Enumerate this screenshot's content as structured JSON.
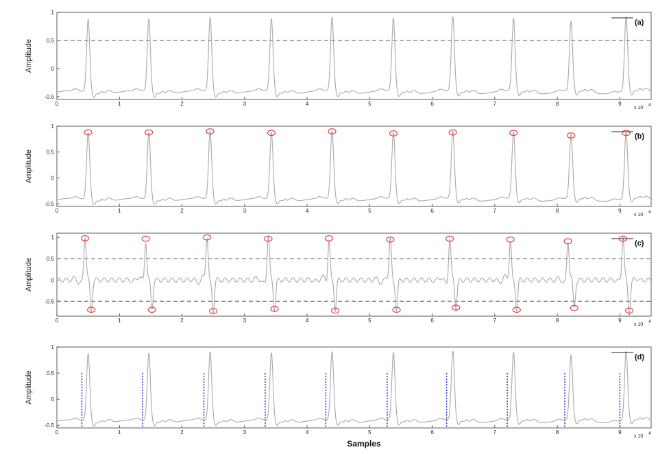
{
  "figure": {
    "xlabel": "Samples",
    "x_scale_note": "x 10",
    "x_scale_exp": "4"
  },
  "chart_data": [
    {
      "type": "line",
      "panel": "(a)",
      "ylabel": "Amplitude",
      "xlim": [
        0,
        9.5
      ],
      "ylim": [
        -0.55,
        1.0
      ],
      "x_ticks": [
        "0",
        "1",
        "2",
        "3",
        "4",
        "5",
        "6",
        "7",
        "8",
        "9"
      ],
      "y_ticks": [
        "-0.5",
        "0",
        "0.5",
        "1"
      ],
      "threshold_lines": [
        0.5
      ],
      "r_peaks_x": [
        0.5,
        1.47,
        2.45,
        3.43,
        4.4,
        5.38,
        6.33,
        7.3,
        8.22,
        9.1
      ],
      "r_peaks_y": [
        0.88,
        0.88,
        0.9,
        0.88,
        0.9,
        0.88,
        0.9,
        0.87,
        0.82,
        0.9
      ],
      "marked_peaks": false
    },
    {
      "type": "line",
      "panel": "(b)",
      "ylabel": "Amplitude",
      "xlim": [
        0,
        9.5
      ],
      "ylim": [
        -0.55,
        1.0
      ],
      "x_ticks": [
        "0",
        "1",
        "2",
        "3",
        "4",
        "5",
        "6",
        "7",
        "8",
        "9"
      ],
      "y_ticks": [
        "-0.5",
        "0",
        "0.5",
        "1"
      ],
      "threshold_lines": [],
      "r_peaks_x": [
        0.5,
        1.47,
        2.45,
        3.43,
        4.4,
        5.38,
        6.33,
        7.3,
        8.22,
        9.1
      ],
      "r_peaks_y": [
        0.88,
        0.88,
        0.9,
        0.87,
        0.9,
        0.86,
        0.88,
        0.87,
        0.82,
        0.87
      ],
      "marked_peaks": true
    },
    {
      "type": "line",
      "panel": "(c)",
      "ylabel": "Amplitude",
      "xlim": [
        0,
        9.5
      ],
      "ylim": [
        -0.85,
        1.1
      ],
      "x_ticks": [
        "0",
        "1",
        "2",
        "3",
        "4",
        "5",
        "6",
        "7",
        "8",
        "9"
      ],
      "y_ticks": [
        "-0.5",
        "0",
        "0.5",
        "1"
      ],
      "threshold_lines": [
        0.5,
        -0.5
      ],
      "max_peaks_x": [
        0.45,
        1.42,
        2.4,
        3.38,
        4.35,
        5.33,
        6.28,
        7.25,
        8.17,
        9.05
      ],
      "max_peaks_y": [
        0.98,
        0.97,
        1.0,
        0.97,
        0.98,
        0.95,
        0.97,
        0.95,
        0.91,
        0.97
      ],
      "min_peaks_x": [
        0.55,
        1.52,
        2.5,
        3.48,
        4.45,
        5.43,
        6.38,
        7.35,
        8.27,
        9.15
      ],
      "min_peaks_y": [
        -0.7,
        -0.7,
        -0.73,
        -0.68,
        -0.72,
        -0.7,
        -0.65,
        -0.7,
        -0.66,
        -0.72
      ]
    },
    {
      "type": "line",
      "panel": "(d)",
      "ylabel": "Amplitude",
      "xlim": [
        0,
        9.5
      ],
      "ylim": [
        -0.55,
        1.0
      ],
      "x_ticks": [
        "0",
        "1",
        "2",
        "3",
        "4",
        "5",
        "6",
        "7",
        "8",
        "9"
      ],
      "y_ticks": [
        "-0.5",
        "0",
        "0.5",
        "1"
      ],
      "threshold_lines": [],
      "r_peaks_x": [
        0.5,
        1.47,
        2.45,
        3.43,
        4.4,
        5.38,
        6.33,
        7.3,
        8.22,
        9.1
      ],
      "r_peaks_y": [
        0.88,
        0.88,
        0.9,
        0.88,
        0.9,
        0.88,
        0.9,
        0.87,
        0.82,
        0.9
      ],
      "onset_markers_x": [
        0.4,
        1.37,
        2.35,
        3.33,
        4.3,
        5.28,
        6.23,
        7.2,
        8.12,
        9.0
      ],
      "onset_marker_top": 0.5
    }
  ],
  "colors": {
    "signal": "#a8a8a8",
    "axes": "#333333",
    "threshold": "#555555",
    "peak_marker": "#e8403a",
    "onset_marker": "#2a3fd6"
  }
}
